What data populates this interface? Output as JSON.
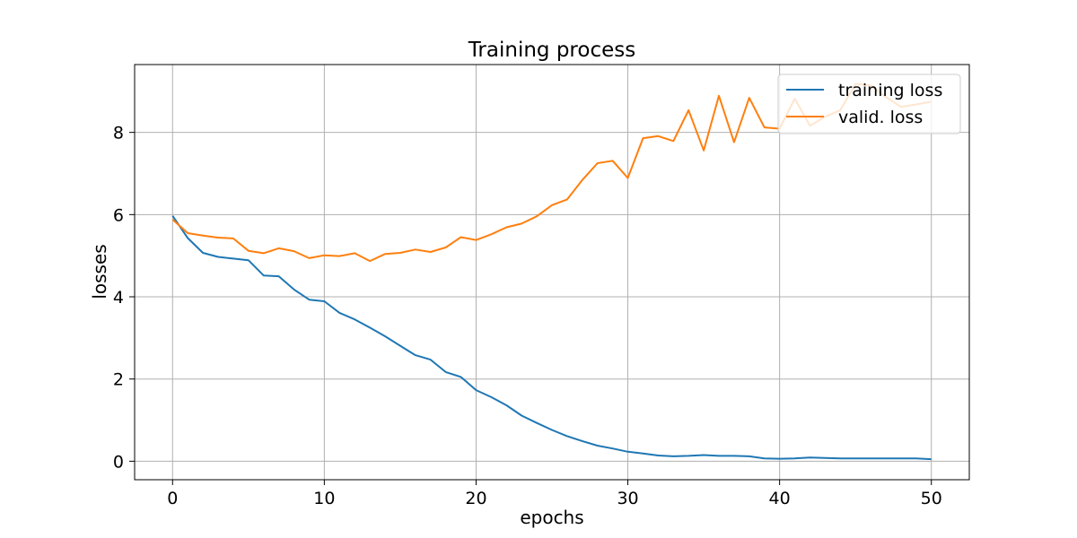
{
  "chart_data": {
    "type": "line",
    "title": "Training process",
    "xlabel": "epochs",
    "ylabel": "losses",
    "xlim": [
      -2.5,
      52.5
    ],
    "ylim": [
      -0.45,
      9.65
    ],
    "xticks": [
      0,
      10,
      20,
      30,
      40,
      50
    ],
    "yticks": [
      0,
      2,
      4,
      6,
      8
    ],
    "grid": true,
    "legend_position": "upper right",
    "x": [
      0,
      1,
      2,
      3,
      4,
      5,
      6,
      7,
      8,
      9,
      10,
      11,
      12,
      13,
      14,
      15,
      16,
      17,
      18,
      19,
      20,
      21,
      22,
      23,
      24,
      25,
      26,
      27,
      28,
      29,
      30,
      31,
      32,
      33,
      34,
      35,
      36,
      37,
      38,
      39,
      40,
      41,
      42,
      43,
      44,
      45,
      46,
      47,
      48,
      49,
      50
    ],
    "series": [
      {
        "name": "training loss",
        "color": "#1f77b4",
        "values": [
          5.97,
          5.43,
          5.07,
          4.97,
          4.93,
          4.89,
          4.52,
          4.5,
          4.18,
          3.93,
          3.89,
          3.61,
          3.45,
          3.25,
          3.04,
          2.81,
          2.58,
          2.47,
          2.17,
          2.05,
          1.73,
          1.56,
          1.36,
          1.11,
          0.93,
          0.76,
          0.61,
          0.49,
          0.38,
          0.31,
          0.23,
          0.19,
          0.14,
          0.12,
          0.13,
          0.15,
          0.13,
          0.13,
          0.12,
          0.07,
          0.06,
          0.07,
          0.09,
          0.08,
          0.07,
          0.07,
          0.07,
          0.07,
          0.07,
          0.07,
          0.05
        ]
      },
      {
        "name": "valid. loss",
        "color": "#ff7f0e",
        "values": [
          5.88,
          5.55,
          5.49,
          5.44,
          5.42,
          5.12,
          5.06,
          5.18,
          5.11,
          4.94,
          5.01,
          4.99,
          5.06,
          4.87,
          5.04,
          5.07,
          5.15,
          5.09,
          5.2,
          5.45,
          5.38,
          5.52,
          5.69,
          5.78,
          5.96,
          6.23,
          6.37,
          6.84,
          7.25,
          7.31,
          6.89,
          7.86,
          7.91,
          7.79,
          8.54,
          7.56,
          8.89,
          7.76,
          8.84,
          8.12,
          8.09,
          8.82,
          8.16,
          8.38,
          8.54,
          9.18,
          9.14,
          8.86,
          8.62,
          8.68,
          8.75
        ]
      }
    ]
  }
}
